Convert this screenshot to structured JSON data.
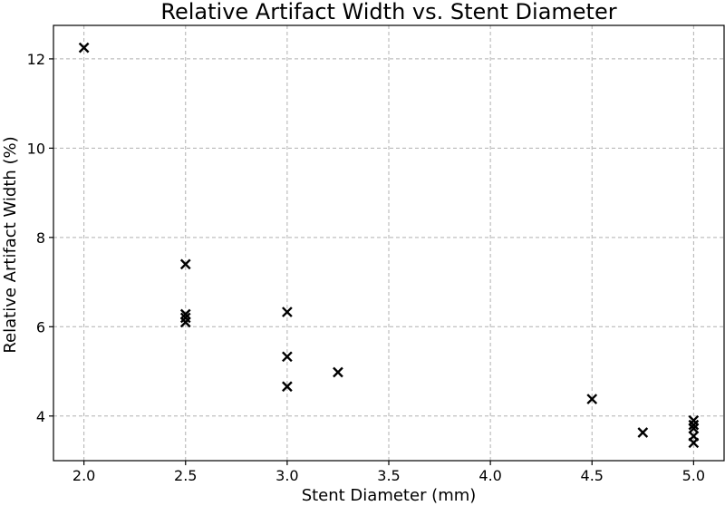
{
  "chart_data": {
    "type": "scatter",
    "title": "Relative Artifact Width vs. Stent Diameter",
    "xlabel": "Stent Diameter (mm)",
    "ylabel": "Relative Artifact Width (%)",
    "xlim": [
      1.85,
      5.15
    ],
    "ylim": [
      3.0,
      12.75
    ],
    "xticks": [
      2.0,
      2.5,
      3.0,
      3.5,
      4.0,
      4.5,
      5.0
    ],
    "xtick_labels": [
      "2.0",
      "2.5",
      "3.0",
      "3.5",
      "4.0",
      "4.5",
      "5.0"
    ],
    "yticks": [
      4,
      6,
      8,
      10,
      12
    ],
    "ytick_labels": [
      "4",
      "6",
      "8",
      "10",
      "12"
    ],
    "grid": true,
    "marker": "x",
    "marker_color": "#000000",
    "points": [
      {
        "x": 2.0,
        "y": 12.25
      },
      {
        "x": 2.5,
        "y": 7.4
      },
      {
        "x": 2.5,
        "y": 6.28
      },
      {
        "x": 2.5,
        "y": 6.2
      },
      {
        "x": 2.5,
        "y": 6.1
      },
      {
        "x": 3.0,
        "y": 6.33
      },
      {
        "x": 3.0,
        "y": 5.33
      },
      {
        "x": 3.0,
        "y": 4.66
      },
      {
        "x": 3.25,
        "y": 4.98
      },
      {
        "x": 4.5,
        "y": 4.38
      },
      {
        "x": 4.75,
        "y": 3.63
      },
      {
        "x": 5.0,
        "y": 3.9
      },
      {
        "x": 5.0,
        "y": 3.8
      },
      {
        "x": 5.0,
        "y": 3.72
      },
      {
        "x": 5.0,
        "y": 3.55
      },
      {
        "x": 5.0,
        "y": 3.4
      }
    ]
  }
}
